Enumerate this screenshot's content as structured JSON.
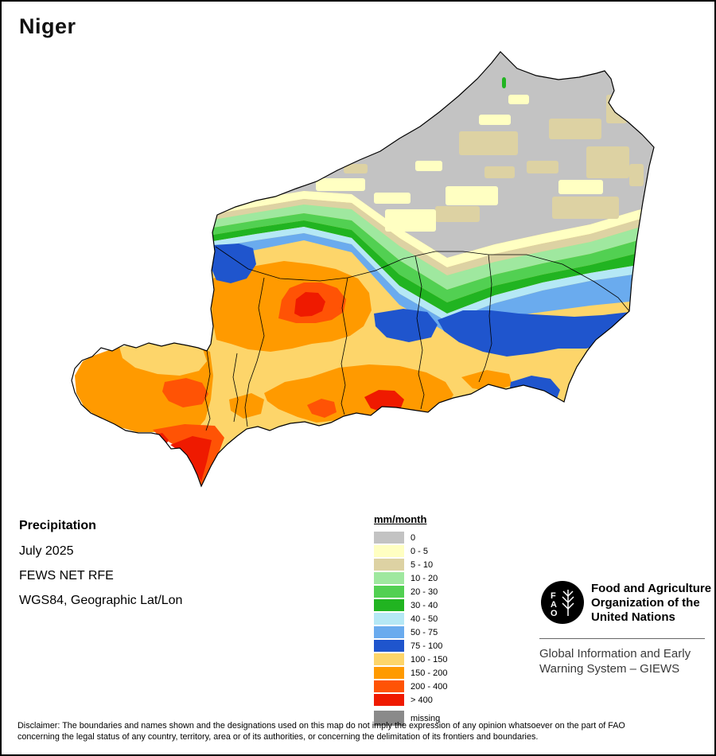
{
  "page": {
    "title": "Niger"
  },
  "map": {
    "country": "Niger",
    "variable": "Precipitation",
    "unit": "mm/month"
  },
  "info_block": {
    "heading": "Precipitation",
    "period": "July 2025",
    "source": "FEWS NET RFE",
    "projection": "WGS84, Geographic Lat/Lon"
  },
  "legend": {
    "title": "mm/month",
    "entries": [
      {
        "label": "0",
        "color": "#c3c3c3"
      },
      {
        "label": "0 - 5",
        "color": "#ffffc2"
      },
      {
        "label": "5 - 10",
        "color": "#ddd2a3"
      },
      {
        "label": "10 - 20",
        "color": "#9fe89f"
      },
      {
        "label": "20 - 30",
        "color": "#52d052"
      },
      {
        "label": "30 - 40",
        "color": "#21b421"
      },
      {
        "label": "40 - 50",
        "color": "#b5e8f5"
      },
      {
        "label": "50 - 75",
        "color": "#6aabee"
      },
      {
        "label": "75 - 100",
        "color": "#1f55cd"
      },
      {
        "label": "100 - 150",
        "color": "#fdd56a"
      },
      {
        "label": "150 - 200",
        "color": "#ff9a00"
      },
      {
        "label": "200 - 400",
        "color": "#ff5305"
      },
      {
        "label": "> 400",
        "color": "#ef1a00"
      },
      {
        "label": "missing",
        "color": "#8a8a8a"
      }
    ]
  },
  "footer": {
    "fao_logo": {
      "letters": [
        "F",
        "A",
        "O"
      ]
    },
    "org_lines": [
      "Food and Agriculture",
      "Organization of the",
      "United Nations"
    ],
    "giews_lines": [
      "Global Information and Early",
      "Warning System – GIEWS"
    ]
  },
  "disclaimer": {
    "line1": "Disclaimer: The boundaries and names shown and the designations used on this map do not imply the expression of any opinion whatsoever on the part of FAO",
    "line2": "concerning the legal status of any country, territory, area or of its authorities, or concerning the delimitation of its frontiers and boundaries."
  }
}
